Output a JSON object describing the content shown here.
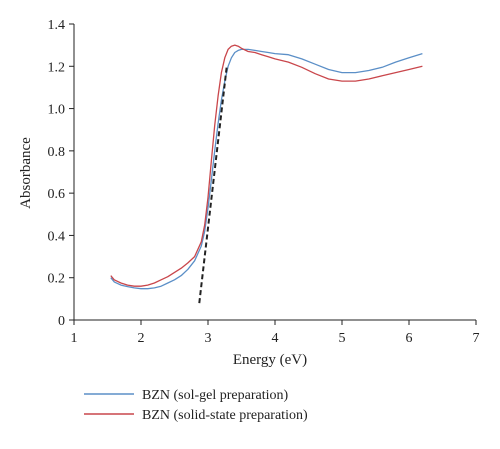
{
  "chart_data": {
    "type": "line",
    "title": "",
    "xlabel": "Energy (eV)",
    "ylabel": "Absorbance",
    "xlim": [
      1,
      7
    ],
    "ylim": [
      0,
      1.4
    ],
    "x_ticks": [
      "1",
      "2",
      "3",
      "4",
      "5",
      "6",
      "7"
    ],
    "y_ticks": [
      "0",
      "0.2",
      "0.4",
      "0.6",
      "0.8",
      "1.0",
      "1.2",
      "1.4"
    ],
    "grid": false,
    "legend": {
      "placement": "bottom-left",
      "entries": [
        "BZN (sol-gel preparation)",
        "BZN (solid-state preparation)"
      ]
    },
    "series": [
      {
        "name": "BZN (sol-gel preparation)",
        "color": "#5b8fc7",
        "x": [
          1.55,
          1.6,
          1.7,
          1.8,
          1.9,
          2.0,
          2.1,
          2.2,
          2.3,
          2.4,
          2.5,
          2.6,
          2.7,
          2.8,
          2.9,
          2.95,
          3.0,
          3.05,
          3.1,
          3.15,
          3.2,
          3.25,
          3.3,
          3.35,
          3.4,
          3.45,
          3.5,
          3.6,
          3.7,
          3.8,
          3.9,
          4.0,
          4.2,
          4.4,
          4.6,
          4.8,
          5.0,
          5.2,
          5.4,
          5.6,
          5.8,
          6.0,
          6.2
        ],
        "y": [
          0.2,
          0.18,
          0.165,
          0.158,
          0.152,
          0.148,
          0.148,
          0.152,
          0.16,
          0.175,
          0.19,
          0.21,
          0.24,
          0.28,
          0.35,
          0.42,
          0.53,
          0.66,
          0.8,
          0.93,
          1.04,
          1.13,
          1.2,
          1.24,
          1.265,
          1.275,
          1.28,
          1.28,
          1.275,
          1.27,
          1.265,
          1.26,
          1.255,
          1.235,
          1.21,
          1.185,
          1.17,
          1.17,
          1.18,
          1.195,
          1.22,
          1.24,
          1.26
        ]
      },
      {
        "name": "BZN (solid-state preparation)",
        "color": "#c9464b",
        "x": [
          1.55,
          1.6,
          1.7,
          1.8,
          1.9,
          2.0,
          2.1,
          2.2,
          2.3,
          2.4,
          2.5,
          2.6,
          2.7,
          2.8,
          2.9,
          2.95,
          3.0,
          3.05,
          3.1,
          3.15,
          3.2,
          3.25,
          3.3,
          3.35,
          3.4,
          3.45,
          3.5,
          3.6,
          3.7,
          3.8,
          3.9,
          4.0,
          4.2,
          4.4,
          4.6,
          4.8,
          5.0,
          5.2,
          5.4,
          5.6,
          5.8,
          6.0,
          6.2
        ],
        "y": [
          0.21,
          0.19,
          0.175,
          0.165,
          0.16,
          0.16,
          0.165,
          0.175,
          0.19,
          0.205,
          0.225,
          0.245,
          0.27,
          0.3,
          0.37,
          0.45,
          0.58,
          0.75,
          0.92,
          1.06,
          1.17,
          1.24,
          1.28,
          1.295,
          1.3,
          1.295,
          1.285,
          1.27,
          1.265,
          1.255,
          1.245,
          1.235,
          1.22,
          1.195,
          1.165,
          1.14,
          1.13,
          1.13,
          1.14,
          1.155,
          1.17,
          1.185,
          1.2
        ]
      }
    ],
    "annotations": [
      {
        "kind": "dashed-tangent",
        "color": "#222222",
        "x": [
          2.87,
          3.28
        ],
        "y": [
          0.08,
          1.2
        ]
      }
    ]
  }
}
